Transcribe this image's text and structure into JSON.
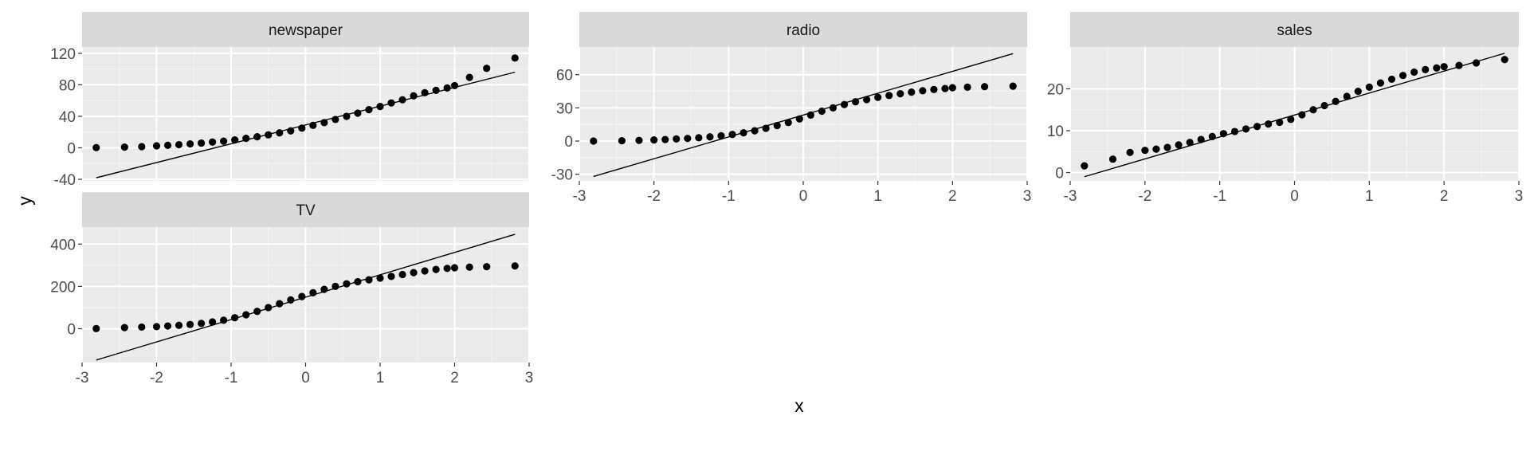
{
  "colors": {
    "panel_bg": "#EBEBEB",
    "strip_bg": "#D9D9D9",
    "grid_major": "#FFFFFF",
    "grid_minor": "#F5F5F5",
    "points": "#000000",
    "reference_line": "#000000",
    "tick_text": "#4D4D4D"
  },
  "chart_data": {
    "type": "scatter",
    "subtype": "qq-plot-facets",
    "xlabel": "x",
    "ylabel": "y",
    "grid": true,
    "legend": "none",
    "facets": [
      {
        "name": "newspaper",
        "xlim": [
          -3.0,
          3.0
        ],
        "ylim": [
          -42,
          128
        ],
        "y_ticks": [
          -40,
          0,
          40,
          80,
          120
        ],
        "y_tick_labels": [
          "-40",
          "0",
          "40",
          "80",
          "120"
        ],
        "x_ticks": [],
        "line": {
          "x": [
            -2.81,
            2.81
          ],
          "y": [
            -38,
            96
          ]
        },
        "points": {
          "x": [
            -2.81,
            -2.43,
            -2.2,
            -2.0,
            -1.85,
            -1.7,
            -1.55,
            -1.4,
            -1.25,
            -1.1,
            -0.95,
            -0.8,
            -0.65,
            -0.5,
            -0.35,
            -0.2,
            -0.05,
            0.1,
            0.25,
            0.4,
            0.55,
            0.7,
            0.85,
            1.0,
            1.15,
            1.3,
            1.45,
            1.6,
            1.75,
            1.9,
            2.0,
            2.2,
            2.43,
            2.81
          ],
          "y": [
            0.3,
            0.9,
            1.5,
            2.5,
            3.2,
            4.0,
            5.0,
            6.0,
            7.3,
            8.5,
            10.0,
            12.0,
            14.0,
            16.5,
            19.0,
            21.5,
            25.0,
            28.5,
            32.0,
            36.0,
            40.0,
            44.0,
            48.5,
            52.5,
            57.0,
            61.0,
            66.0,
            70.0,
            73.0,
            76.0,
            79.0,
            89.4,
            100.9,
            114.0
          ]
        }
      },
      {
        "name": "radio",
        "xlim": [
          -3.0,
          3.0
        ],
        "ylim": [
          -36,
          85
        ],
        "y_ticks": [
          -30,
          0,
          30,
          60
        ],
        "y_tick_labels": [
          "-30",
          "0",
          "30",
          "60"
        ],
        "x_ticks": [
          -3,
          -2,
          -1,
          0,
          1,
          2,
          3
        ],
        "x_tick_labels": [
          "-3",
          "-2",
          "-1",
          "0",
          "1",
          "2",
          "3"
        ],
        "line": {
          "x": [
            -2.81,
            2.81
          ],
          "y": [
            -32,
            79
          ]
        },
        "points": {
          "x": [
            -2.81,
            -2.43,
            -2.2,
            -2.0,
            -1.85,
            -1.7,
            -1.55,
            -1.4,
            -1.25,
            -1.1,
            -0.95,
            -0.8,
            -0.65,
            -0.5,
            -0.35,
            -0.2,
            -0.05,
            0.1,
            0.25,
            0.4,
            0.55,
            0.7,
            0.85,
            1.0,
            1.15,
            1.3,
            1.45,
            1.6,
            1.75,
            1.9,
            2.0,
            2.2,
            2.43,
            2.81
          ],
          "y": [
            0.0,
            0.3,
            0.6,
            1.0,
            1.4,
            1.9,
            2.4,
            3.0,
            3.8,
            4.8,
            6.0,
            7.5,
            9.3,
            11.5,
            14.0,
            16.8,
            20.0,
            23.5,
            27.0,
            30.0,
            33.0,
            35.5,
            37.5,
            39.5,
            41.2,
            42.8,
            44.2,
            45.5,
            46.6,
            47.5,
            48.2,
            48.7,
            49.2,
            49.6
          ]
        }
      },
      {
        "name": "sales",
        "xlim": [
          -3.0,
          3.0
        ],
        "ylim": [
          -2,
          30
        ],
        "y_ticks": [
          0,
          10,
          20
        ],
        "y_tick_labels": [
          "0",
          "10",
          "20"
        ],
        "x_ticks": [
          -3,
          -2,
          -1,
          0,
          1,
          2,
          3
        ],
        "x_tick_labels": [
          "-3",
          "-2",
          "-1",
          "0",
          "1",
          "2",
          "3"
        ],
        "line": {
          "x": [
            -2.81,
            2.81
          ],
          "y": [
            -1.0,
            28.5
          ]
        },
        "points": {
          "x": [
            -2.81,
            -2.43,
            -2.2,
            -2.0,
            -1.85,
            -1.7,
            -1.55,
            -1.4,
            -1.25,
            -1.1,
            -0.95,
            -0.8,
            -0.65,
            -0.5,
            -0.35,
            -0.2,
            -0.05,
            0.1,
            0.25,
            0.4,
            0.55,
            0.7,
            0.85,
            1.0,
            1.15,
            1.3,
            1.45,
            1.6,
            1.75,
            1.9,
            2.0,
            2.2,
            2.43,
            2.81
          ],
          "y": [
            1.6,
            3.2,
            4.8,
            5.3,
            5.6,
            6.0,
            6.6,
            7.2,
            7.9,
            8.6,
            9.3,
            9.8,
            10.4,
            11.0,
            11.6,
            12.0,
            12.7,
            13.8,
            15.0,
            16.0,
            17.0,
            18.2,
            19.4,
            20.4,
            21.4,
            22.3,
            23.2,
            24.0,
            24.6,
            25.0,
            25.3,
            25.6,
            26.2,
            27.0
          ]
        }
      },
      {
        "name": "TV",
        "xlim": [
          -3.0,
          3.0
        ],
        "ylim": [
          -160,
          480
        ],
        "y_ticks": [
          0,
          200,
          400
        ],
        "y_tick_labels": [
          "0",
          "200",
          "400"
        ],
        "x_ticks": [
          -3,
          -2,
          -1,
          0,
          1,
          2,
          3
        ],
        "x_tick_labels": [
          "-3",
          "-2",
          "-1",
          "0",
          "1",
          "2",
          "3"
        ],
        "line": {
          "x": [
            -2.81,
            2.81
          ],
          "y": [
            -148,
            446
          ]
        },
        "points": {
          "x": [
            -2.81,
            -2.43,
            -2.2,
            -2.0,
            -1.85,
            -1.7,
            -1.55,
            -1.4,
            -1.25,
            -1.1,
            -0.95,
            -0.8,
            -0.65,
            -0.5,
            -0.35,
            -0.2,
            -0.05,
            0.1,
            0.25,
            0.4,
            0.55,
            0.7,
            0.85,
            1.0,
            1.15,
            1.3,
            1.45,
            1.6,
            1.75,
            1.9,
            2.0,
            2.2,
            2.43,
            2.81
          ],
          "y": [
            0.7,
            5.4,
            7.8,
            10.0,
            13.0,
            16.0,
            20.0,
            25.0,
            32.0,
            40.0,
            52.0,
            66.0,
            82.0,
            100.0,
            118.0,
            136.0,
            152.0,
            170.0,
            186.0,
            200.0,
            212.0,
            222.0,
            231.0,
            239.0,
            247.0,
            256.0,
            265.0,
            273.0,
            280.0,
            285.0,
            288.0,
            291.0,
            293.0,
            296.4
          ]
        }
      }
    ]
  }
}
